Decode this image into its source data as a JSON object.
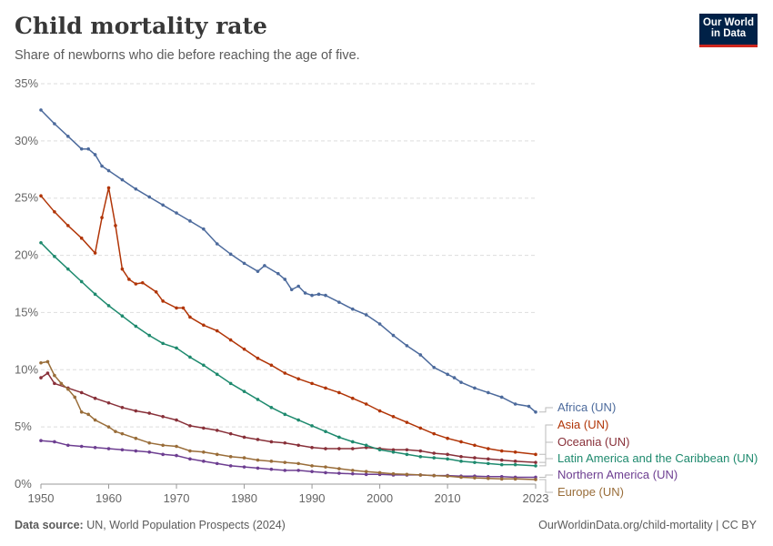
{
  "header": {
    "title": "Child mortality rate",
    "subtitle": "Share of newborns who die before reaching the age of five.",
    "logo_line1": "Our World",
    "logo_line2": "in Data"
  },
  "footer": {
    "source_label": "Data source:",
    "source_text": "UN, World Population Prospects (2024)",
    "link_text": "OurWorldinData.org/child-mortality | CC BY"
  },
  "chart_data": {
    "type": "line",
    "title": "Child mortality rate",
    "subtitle": "Share of newborns who die before reaching the age of five.",
    "xlabel": "",
    "ylabel": "",
    "xlim": [
      1950,
      2023
    ],
    "ylim": [
      0,
      35
    ],
    "x_ticks": [
      "1950",
      "1960",
      "1970",
      "1980",
      "1990",
      "2000",
      "2010",
      "2023"
    ],
    "y_ticks": [
      "0%",
      "5%",
      "10%",
      "15%",
      "20%",
      "25%",
      "30%",
      "35%"
    ],
    "grid": true,
    "legend_placement": "right (direct labels)",
    "series": [
      {
        "name": "Africa (UN)",
        "color": "#4c6a9c",
        "points": [
          [
            1950,
            32.7
          ],
          [
            1952,
            31.5
          ],
          [
            1954,
            30.4
          ],
          [
            1956,
            29.3
          ],
          [
            1957,
            29.3
          ],
          [
            1958,
            28.8
          ],
          [
            1959,
            27.8
          ],
          [
            1960,
            27.4
          ],
          [
            1962,
            26.6
          ],
          [
            1964,
            25.8
          ],
          [
            1966,
            25.1
          ],
          [
            1968,
            24.4
          ],
          [
            1970,
            23.7
          ],
          [
            1972,
            23.0
          ],
          [
            1974,
            22.3
          ],
          [
            1976,
            21.0
          ],
          [
            1978,
            20.1
          ],
          [
            1980,
            19.3
          ],
          [
            1982,
            18.6
          ],
          [
            1983,
            19.1
          ],
          [
            1985,
            18.4
          ],
          [
            1986,
            17.9
          ],
          [
            1987,
            17.0
          ],
          [
            1988,
            17.3
          ],
          [
            1989,
            16.7
          ],
          [
            1990,
            16.5
          ],
          [
            1991,
            16.6
          ],
          [
            1992,
            16.5
          ],
          [
            1994,
            15.9
          ],
          [
            1996,
            15.3
          ],
          [
            1998,
            14.8
          ],
          [
            2000,
            14.0
          ],
          [
            2002,
            13.0
          ],
          [
            2004,
            12.1
          ],
          [
            2006,
            11.3
          ],
          [
            2008,
            10.2
          ],
          [
            2010,
            9.6
          ],
          [
            2011,
            9.3
          ],
          [
            2012,
            8.9
          ],
          [
            2014,
            8.4
          ],
          [
            2016,
            8.0
          ],
          [
            2018,
            7.6
          ],
          [
            2020,
            7.0
          ],
          [
            2022,
            6.8
          ],
          [
            2023,
            6.3
          ]
        ]
      },
      {
        "name": "Asia (UN)",
        "color": "#b13507",
        "points": [
          [
            1950,
            25.2
          ],
          [
            1952,
            23.8
          ],
          [
            1954,
            22.6
          ],
          [
            1956,
            21.5
          ],
          [
            1958,
            20.2
          ],
          [
            1959,
            23.3
          ],
          [
            1960,
            25.9
          ],
          [
            1961,
            22.6
          ],
          [
            1962,
            18.8
          ],
          [
            1963,
            17.9
          ],
          [
            1964,
            17.5
          ],
          [
            1965,
            17.6
          ],
          [
            1967,
            16.8
          ],
          [
            1968,
            16.0
          ],
          [
            1970,
            15.4
          ],
          [
            1971,
            15.4
          ],
          [
            1972,
            14.6
          ],
          [
            1974,
            13.9
          ],
          [
            1976,
            13.4
          ],
          [
            1978,
            12.6
          ],
          [
            1980,
            11.8
          ],
          [
            1982,
            11.0
          ],
          [
            1984,
            10.4
          ],
          [
            1986,
            9.7
          ],
          [
            1988,
            9.2
          ],
          [
            1990,
            8.8
          ],
          [
            1992,
            8.4
          ],
          [
            1994,
            8.0
          ],
          [
            1996,
            7.5
          ],
          [
            1998,
            7.0
          ],
          [
            2000,
            6.4
          ],
          [
            2002,
            5.9
          ],
          [
            2004,
            5.4
          ],
          [
            2006,
            4.9
          ],
          [
            2008,
            4.4
          ],
          [
            2010,
            4.0
          ],
          [
            2012,
            3.7
          ],
          [
            2014,
            3.4
          ],
          [
            2016,
            3.1
          ],
          [
            2018,
            2.9
          ],
          [
            2020,
            2.8
          ],
          [
            2023,
            2.6
          ]
        ]
      },
      {
        "name": "Oceania (UN)",
        "color": "#883039",
        "points": [
          [
            1950,
            9.3
          ],
          [
            1951,
            9.7
          ],
          [
            1952,
            8.8
          ],
          [
            1954,
            8.4
          ],
          [
            1956,
            8.0
          ],
          [
            1958,
            7.5
          ],
          [
            1960,
            7.1
          ],
          [
            1962,
            6.7
          ],
          [
            1964,
            6.4
          ],
          [
            1966,
            6.2
          ],
          [
            1968,
            5.9
          ],
          [
            1970,
            5.6
          ],
          [
            1972,
            5.1
          ],
          [
            1974,
            4.9
          ],
          [
            1976,
            4.7
          ],
          [
            1978,
            4.4
          ],
          [
            1980,
            4.1
          ],
          [
            1982,
            3.9
          ],
          [
            1984,
            3.7
          ],
          [
            1986,
            3.6
          ],
          [
            1988,
            3.4
          ],
          [
            1990,
            3.2
          ],
          [
            1992,
            3.1
          ],
          [
            1994,
            3.1
          ],
          [
            1996,
            3.1
          ],
          [
            1998,
            3.2
          ],
          [
            2000,
            3.1
          ],
          [
            2002,
            3.0
          ],
          [
            2004,
            3.0
          ],
          [
            2006,
            2.9
          ],
          [
            2008,
            2.7
          ],
          [
            2010,
            2.6
          ],
          [
            2012,
            2.4
          ],
          [
            2014,
            2.3
          ],
          [
            2016,
            2.2
          ],
          [
            2018,
            2.1
          ],
          [
            2020,
            2.0
          ],
          [
            2023,
            1.9
          ]
        ]
      },
      {
        "name": "Latin America and the Caribbean (UN)",
        "color": "#1e8a6e",
        "points": [
          [
            1950,
            21.1
          ],
          [
            1952,
            19.9
          ],
          [
            1954,
            18.8
          ],
          [
            1956,
            17.7
          ],
          [
            1958,
            16.6
          ],
          [
            1960,
            15.6
          ],
          [
            1962,
            14.7
          ],
          [
            1964,
            13.8
          ],
          [
            1966,
            13.0
          ],
          [
            1968,
            12.3
          ],
          [
            1970,
            11.9
          ],
          [
            1972,
            11.1
          ],
          [
            1974,
            10.4
          ],
          [
            1976,
            9.6
          ],
          [
            1978,
            8.8
          ],
          [
            1980,
            8.1
          ],
          [
            1982,
            7.4
          ],
          [
            1984,
            6.7
          ],
          [
            1986,
            6.1
          ],
          [
            1988,
            5.6
          ],
          [
            1990,
            5.1
          ],
          [
            1992,
            4.6
          ],
          [
            1994,
            4.1
          ],
          [
            1996,
            3.7
          ],
          [
            1998,
            3.4
          ],
          [
            2000,
            3.0
          ],
          [
            2002,
            2.8
          ],
          [
            2004,
            2.6
          ],
          [
            2006,
            2.4
          ],
          [
            2008,
            2.3
          ],
          [
            2010,
            2.2
          ],
          [
            2012,
            2.0
          ],
          [
            2014,
            1.9
          ],
          [
            2016,
            1.8
          ],
          [
            2018,
            1.7
          ],
          [
            2020,
            1.7
          ],
          [
            2023,
            1.6
          ]
        ]
      },
      {
        "name": "Northern America (UN)",
        "color": "#6d3e91",
        "points": [
          [
            1950,
            3.8
          ],
          [
            1952,
            3.7
          ],
          [
            1954,
            3.4
          ],
          [
            1956,
            3.3
          ],
          [
            1958,
            3.2
          ],
          [
            1960,
            3.1
          ],
          [
            1962,
            3.0
          ],
          [
            1964,
            2.9
          ],
          [
            1966,
            2.8
          ],
          [
            1968,
            2.6
          ],
          [
            1970,
            2.5
          ],
          [
            1972,
            2.2
          ],
          [
            1974,
            2.0
          ],
          [
            1976,
            1.8
          ],
          [
            1978,
            1.6
          ],
          [
            1980,
            1.5
          ],
          [
            1982,
            1.4
          ],
          [
            1984,
            1.3
          ],
          [
            1986,
            1.2
          ],
          [
            1988,
            1.2
          ],
          [
            1990,
            1.1
          ],
          [
            1992,
            1.0
          ],
          [
            1994,
            0.95
          ],
          [
            1996,
            0.9
          ],
          [
            1998,
            0.85
          ],
          [
            2000,
            0.85
          ],
          [
            2002,
            0.8
          ],
          [
            2004,
            0.8
          ],
          [
            2006,
            0.8
          ],
          [
            2008,
            0.75
          ],
          [
            2010,
            0.75
          ],
          [
            2012,
            0.7
          ],
          [
            2014,
            0.7
          ],
          [
            2016,
            0.65
          ],
          [
            2018,
            0.65
          ],
          [
            2020,
            0.6
          ],
          [
            2023,
            0.6
          ]
        ]
      },
      {
        "name": "Europe (UN)",
        "color": "#996d39",
        "points": [
          [
            1950,
            10.6
          ],
          [
            1951,
            10.7
          ],
          [
            1952,
            9.5
          ],
          [
            1953,
            8.8
          ],
          [
            1954,
            8.3
          ],
          [
            1955,
            7.6
          ],
          [
            1956,
            6.3
          ],
          [
            1957,
            6.1
          ],
          [
            1958,
            5.6
          ],
          [
            1960,
            5.0
          ],
          [
            1961,
            4.6
          ],
          [
            1962,
            4.4
          ],
          [
            1964,
            4.0
          ],
          [
            1966,
            3.6
          ],
          [
            1968,
            3.4
          ],
          [
            1970,
            3.3
          ],
          [
            1972,
            2.9
          ],
          [
            1974,
            2.8
          ],
          [
            1976,
            2.6
          ],
          [
            1978,
            2.4
          ],
          [
            1980,
            2.3
          ],
          [
            1982,
            2.1
          ],
          [
            1984,
            2.0
          ],
          [
            1986,
            1.9
          ],
          [
            1988,
            1.8
          ],
          [
            1990,
            1.6
          ],
          [
            1992,
            1.5
          ],
          [
            1994,
            1.35
          ],
          [
            1996,
            1.2
          ],
          [
            1998,
            1.1
          ],
          [
            2000,
            1.0
          ],
          [
            2002,
            0.9
          ],
          [
            2004,
            0.85
          ],
          [
            2006,
            0.8
          ],
          [
            2008,
            0.75
          ],
          [
            2010,
            0.7
          ],
          [
            2012,
            0.6
          ],
          [
            2014,
            0.55
          ],
          [
            2016,
            0.5
          ],
          [
            2018,
            0.45
          ],
          [
            2020,
            0.45
          ],
          [
            2023,
            0.4
          ]
        ]
      }
    ]
  }
}
